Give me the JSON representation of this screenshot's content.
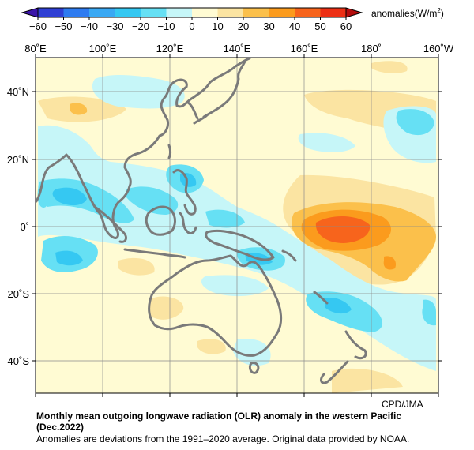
{
  "colorbar": {
    "ticks": [
      "−60",
      "−50",
      "−40",
      "−30",
      "−20",
      "−10",
      "0",
      "10",
      "20",
      "30",
      "40",
      "50",
      "60"
    ],
    "label_prefix": "anomalies(W/m",
    "label_sup": "2",
    "label_suffix": ")",
    "colors": [
      "#2f3fd4",
      "#2e7bf0",
      "#39a8f3",
      "#35c8f2",
      "#66e0f4",
      "#c6f6f8",
      "#fffbd3",
      "#fbe4a2",
      "#fbc04b",
      "#fb9b1d",
      "#f7641c",
      "#ec2f14"
    ]
  },
  "map": {
    "lon_labels": [
      "80˚E",
      "100˚E",
      "120˚E",
      "140˚E",
      "160˚E",
      "180˚",
      "160˚W"
    ],
    "lat_labels": [
      "40˚N",
      "20˚N",
      "0˚",
      "20˚S",
      "40˚S"
    ]
  },
  "credit": "CPD/JMA",
  "caption": {
    "title_line1": "Monthly mean outgoing longwave radiation (OLR) anomaly in the western Pacific",
    "title_line2": "(Dec.2022)",
    "note": "Anomalies are deviations from the 1991–2020 average. Original data provided by NOAA."
  }
}
